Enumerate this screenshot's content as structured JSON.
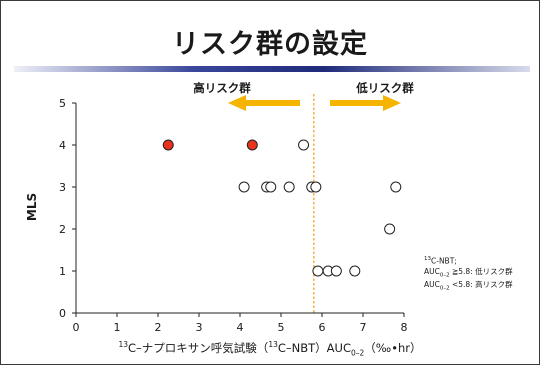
{
  "slide": {
    "title": "リスク群の設定",
    "high_risk_label": "高リスク群",
    "low_risk_label": "低リスク群",
    "arrow_color": "#f5b400",
    "cutoff_line_color": "#f5a623",
    "point_fill_red": "#e8321e",
    "point_fill_open": "#ffffff",
    "note": {
      "line1_sup": "13",
      "line1_text": "C-NBT;",
      "line2_pre": "AUC",
      "line2_sub": "0–2",
      "line2_post": " ≧5.8: 低リスク群",
      "line3_pre": "AUC",
      "line3_sub": "0–2",
      "line3_post": " <5.8: 高リスク群"
    },
    "xlabel": {
      "sup1": "13",
      "part1": "C–ナプロキサン呼気試験（",
      "sup2": "13",
      "part2": "C–NBT）AUC",
      "sub": "0–2",
      "part3": "（‰•hr）"
    }
  },
  "chart_data": {
    "type": "scatter",
    "title": "",
    "ylabel": "MLS",
    "xlim": [
      0,
      8
    ],
    "ylim": [
      0,
      5
    ],
    "xticks": [
      0,
      1,
      2,
      3,
      4,
      5,
      6,
      7,
      8
    ],
    "yticks": [
      0,
      1,
      2,
      3,
      4,
      5
    ],
    "cutoff_x": 5.8,
    "series": [
      {
        "group": "high_risk",
        "marker": "filled",
        "points": [
          {
            "x": 2.25,
            "y": 4
          },
          {
            "x": 4.3,
            "y": 4
          }
        ]
      },
      {
        "group": "all_other",
        "marker": "open",
        "points": [
          {
            "x": 5.55,
            "y": 4
          },
          {
            "x": 4.1,
            "y": 3
          },
          {
            "x": 4.65,
            "y": 3
          },
          {
            "x": 4.75,
            "y": 3
          },
          {
            "x": 5.2,
            "y": 3
          },
          {
            "x": 5.75,
            "y": 3
          },
          {
            "x": 5.85,
            "y": 3
          },
          {
            "x": 7.8,
            "y": 3
          },
          {
            "x": 7.65,
            "y": 2
          },
          {
            "x": 5.9,
            "y": 1
          },
          {
            "x": 6.15,
            "y": 1
          },
          {
            "x": 6.35,
            "y": 1
          },
          {
            "x": 6.8,
            "y": 1
          }
        ]
      }
    ]
  }
}
